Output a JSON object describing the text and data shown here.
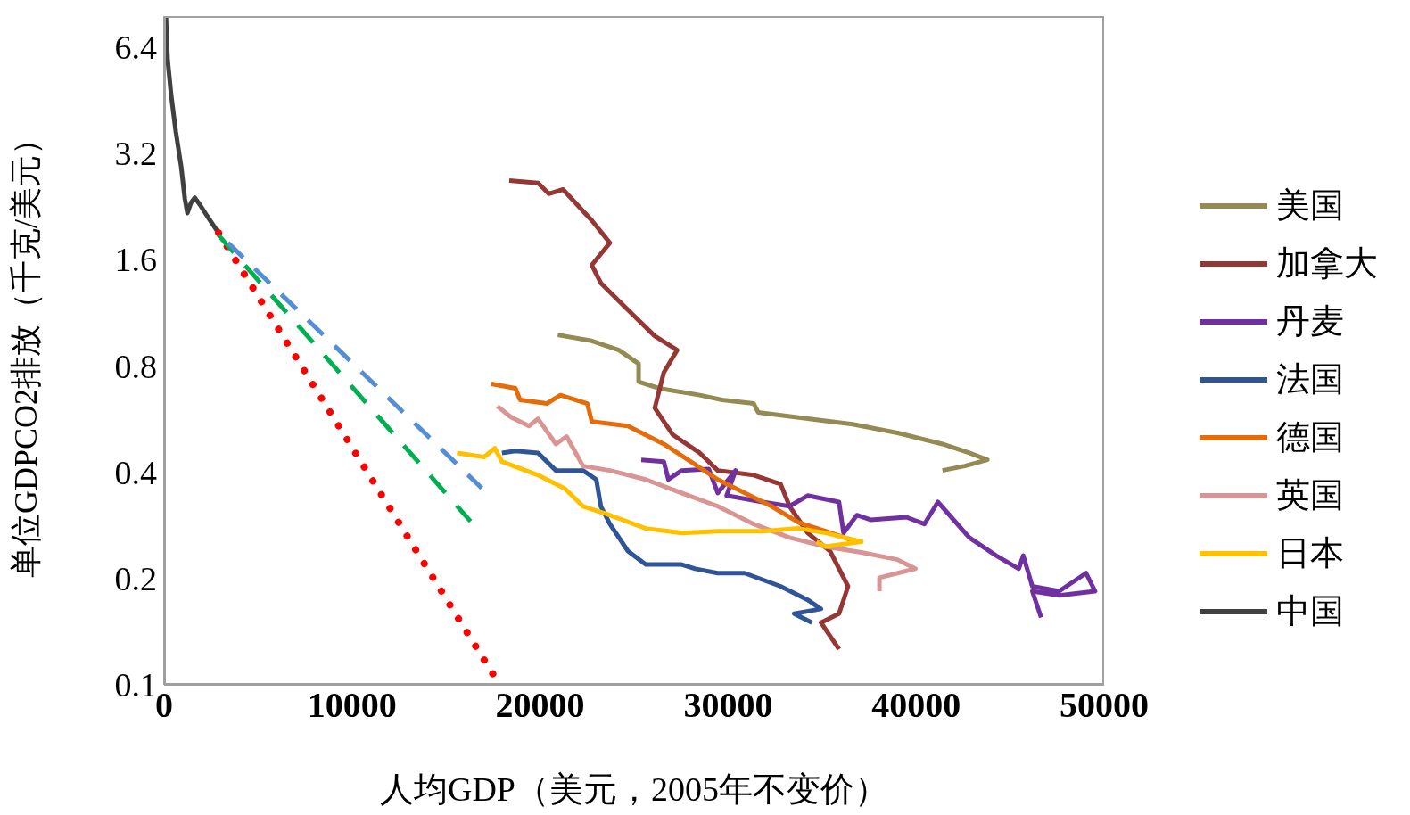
{
  "chart_data": {
    "type": "line",
    "xlabel": "人均GDP（美元，2005年不变价）",
    "ylabel": "单位GDPCO2排放（千克/美元）",
    "log": "y",
    "legend": "right",
    "marker": "none",
    "xlim": [
      0,
      50000
    ],
    "xticks": [
      0,
      10000,
      20000,
      30000,
      40000,
      50000
    ],
    "ylim": [
      0.1,
      7.8
    ],
    "yticks": [
      0.1,
      0.2,
      0.4,
      0.8,
      1.6,
      3.2,
      6.4
    ],
    "series": [
      {
        "name": "美国",
        "color": "#948a54",
        "line_style": "solid",
        "x": [
          20940,
          22750,
          24190,
          25240,
          25240,
          26340,
          28490,
          29680,
          31360,
          31600,
          34230,
          36620,
          39010,
          41400,
          42830,
          43790,
          42590,
          41400
        ],
        "values": [
          0.977,
          0.94,
          0.885,
          0.81,
          0.72,
          0.69,
          0.66,
          0.64,
          0.625,
          0.59,
          0.566,
          0.546,
          0.516,
          0.48,
          0.453,
          0.433,
          0.416,
          0.404
        ]
      },
      {
        "name": "加拿大",
        "color": "#953735",
        "line_style": "solid",
        "x": [
          18360,
          19890,
          20460,
          21220,
          22750,
          23710,
          22750,
          23230,
          24670,
          26100,
          27290,
          26580,
          26100,
          27060,
          28490,
          29450,
          31360,
          32790,
          33270,
          34230,
          35420,
          36380,
          35900,
          34940,
          35900
        ],
        "values": [
          2.67,
          2.63,
          2.45,
          2.52,
          2.06,
          1.78,
          1.54,
          1.37,
          1.15,
          0.97,
          0.885,
          0.765,
          0.607,
          0.51,
          0.453,
          0.404,
          0.392,
          0.37,
          0.32,
          0.269,
          0.239,
          0.19,
          0.159,
          0.15,
          0.126
        ]
      },
      {
        "name": "丹麦",
        "color": "#7030a0",
        "line_style": "solid",
        "x": [
          25380,
          26580,
          26820,
          27530,
          28970,
          29450,
          30400,
          29920,
          31840,
          33270,
          34230,
          35900,
          36140,
          36850,
          37570,
          39480,
          40440,
          41160,
          42830,
          44260,
          45460,
          45700,
          46180,
          47610,
          49040,
          49520,
          47610,
          46180,
          46650
        ],
        "values": [
          0.433,
          0.428,
          0.381,
          0.404,
          0.408,
          0.349,
          0.404,
          0.343,
          0.329,
          0.32,
          0.343,
          0.329,
          0.269,
          0.302,
          0.293,
          0.298,
          0.285,
          0.329,
          0.261,
          0.232,
          0.213,
          0.232,
          0.19,
          0.184,
          0.207,
          0.184,
          0.179,
          0.184,
          0.155
        ]
      },
      {
        "name": "法国",
        "color": "#2f5597",
        "line_style": "solid",
        "x": [
          17970,
          18690,
          19890,
          20840,
          22280,
          22990,
          23230,
          23710,
          24670,
          25620,
          27530,
          28250,
          29450,
          30880,
          32790,
          34230,
          34940,
          33510,
          34460
        ],
        "values": [
          0.453,
          0.459,
          0.453,
          0.404,
          0.404,
          0.381,
          0.32,
          0.285,
          0.239,
          0.219,
          0.219,
          0.213,
          0.207,
          0.207,
          0.19,
          0.174,
          0.164,
          0.159,
          0.15
        ]
      },
      {
        "name": "德国",
        "color": "#e46c0a",
        "line_style": "solid",
        "x": [
          17400,
          18690,
          18930,
          20360,
          21080,
          22510,
          22750,
          24670,
          26580,
          28010,
          29450,
          30880,
          32310,
          33750,
          35180,
          36850
        ],
        "values": [
          0.71,
          0.69,
          0.64,
          0.625,
          0.66,
          0.625,
          0.556,
          0.54,
          0.48,
          0.428,
          0.381,
          0.349,
          0.32,
          0.288,
          0.272,
          0.254
        ]
      },
      {
        "name": "英国",
        "color": "#d99594",
        "line_style": "solid",
        "x": [
          17730,
          18450,
          19410,
          19890,
          20840,
          21410,
          22280,
          23710,
          25620,
          27530,
          29450,
          31360,
          33270,
          35180,
          37090,
          39010,
          39960,
          38050,
          38050
        ],
        "values": [
          0.614,
          0.572,
          0.54,
          0.566,
          0.48,
          0.504,
          0.416,
          0.404,
          0.381,
          0.349,
          0.32,
          0.285,
          0.261,
          0.246,
          0.237,
          0.226,
          0.213,
          0.201,
          0.184
        ]
      },
      {
        "name": "日本",
        "color": "#ffc000",
        "line_style": "solid",
        "x": [
          15580,
          17020,
          17590,
          17970,
          19890,
          21320,
          22280,
          23710,
          25620,
          27530,
          29450,
          31840,
          33750,
          35180,
          37090,
          35180,
          34700
        ],
        "values": [
          0.453,
          0.441,
          0.467,
          0.428,
          0.392,
          0.359,
          0.32,
          0.302,
          0.277,
          0.269,
          0.272,
          0.272,
          0.277,
          0.269,
          0.254,
          0.246,
          0.254
        ]
      },
      {
        "name": "中国",
        "color": "#404040",
        "line_style": "solid",
        "x": [
          100,
          190,
          380,
          620,
          910,
          1100,
          1240,
          1430,
          1630,
          1910,
          2290,
          2920
        ],
        "values": [
          7.74,
          5.86,
          4.64,
          3.68,
          2.92,
          2.38,
          2.16,
          2.31,
          2.39,
          2.28,
          2.12,
          1.89
        ]
      },
      {
        "color": "#ff0000",
        "line_style": "dotted",
        "x": [
          2900,
          17600
        ],
        "values": [
          1.9,
          0.105
        ]
      },
      {
        "color": "#00b050",
        "line_style": "dashed",
        "x": [
          2900,
          16300
        ],
        "values": [
          1.87,
          0.29
        ]
      },
      {
        "color": "#558ed5",
        "line_style": "dashed",
        "x": [
          3400,
          16900
        ],
        "values": [
          1.78,
          0.36
        ]
      }
    ]
  }
}
